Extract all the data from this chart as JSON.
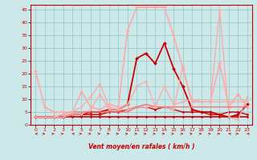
{
  "title": "",
  "xlabel": "Vent moyen/en rafales ( km/h )",
  "ylabel": "",
  "xlim": [
    -0.5,
    23.5
  ],
  "ylim": [
    0,
    47
  ],
  "yticks": [
    0,
    5,
    10,
    15,
    20,
    25,
    30,
    35,
    40,
    45
  ],
  "xticks": [
    0,
    1,
    2,
    3,
    4,
    5,
    6,
    7,
    8,
    9,
    10,
    11,
    12,
    13,
    14,
    15,
    16,
    17,
    18,
    19,
    20,
    21,
    22,
    23
  ],
  "bg_color": "#cce8e8",
  "grid_color": "#99cccc",
  "series": [
    {
      "x": [
        0,
        1,
        2,
        3,
        4,
        5,
        6,
        7,
        8,
        9,
        10,
        11,
        12,
        13,
        14,
        15,
        16,
        17,
        18,
        19,
        20,
        21,
        22,
        23
      ],
      "y": [
        3,
        3,
        3,
        3,
        3,
        3,
        3,
        3,
        3,
        3,
        3,
        3,
        3,
        3,
        3,
        3,
        3,
        3,
        3,
        3,
        3,
        3,
        3,
        3
      ],
      "color": "#cc0000",
      "lw": 1.2,
      "marker": "D",
      "ms": 1.5
    },
    {
      "x": [
        0,
        1,
        2,
        3,
        4,
        5,
        6,
        7,
        8,
        9,
        10,
        11,
        12,
        13,
        14,
        15,
        16,
        17,
        18,
        19,
        20,
        21,
        22,
        23
      ],
      "y": [
        3,
        3,
        3,
        3,
        4,
        4,
        4,
        4,
        5,
        5,
        6,
        7,
        7,
        6,
        7,
        6,
        5,
        5,
        5,
        4,
        4,
        5,
        5,
        4
      ],
      "color": "#cc0000",
      "lw": 1.0,
      "marker": "D",
      "ms": 1.5
    },
    {
      "x": [
        0,
        1,
        2,
        3,
        4,
        5,
        6,
        7,
        8,
        9,
        10,
        11,
        12,
        13,
        14,
        15,
        16,
        17,
        18,
        19,
        20,
        21,
        22,
        23
      ],
      "y": [
        3,
        3,
        3,
        3,
        4,
        4,
        5,
        5,
        6,
        6,
        8,
        26,
        28,
        24,
        32,
        22,
        15,
        6,
        5,
        5,
        4,
        3,
        4,
        8
      ],
      "color": "#cc0000",
      "lw": 1.3,
      "marker": "D",
      "ms": 2.0
    },
    {
      "x": [
        0,
        1,
        2,
        3,
        4,
        5,
        6,
        7,
        8,
        9,
        10,
        11,
        12,
        13,
        14,
        15,
        16,
        17,
        18,
        19,
        20,
        21,
        22,
        23
      ],
      "y": [
        21,
        7,
        5,
        5,
        5,
        13,
        7,
        6,
        8,
        7,
        37,
        46,
        46,
        46,
        46,
        35,
        22,
        9,
        9,
        9,
        24,
        7,
        12,
        7
      ],
      "color": "#ffaaaa",
      "lw": 1.2,
      "marker": "D",
      "ms": 2.0
    },
    {
      "x": [
        0,
        1,
        2,
        3,
        4,
        5,
        6,
        7,
        8,
        9,
        10,
        11,
        12,
        13,
        14,
        15,
        16,
        17,
        18,
        19,
        20,
        21,
        22,
        23
      ],
      "y": [
        3,
        3,
        3,
        3,
        4,
        4,
        6,
        12,
        6,
        6,
        6,
        7,
        7,
        7,
        7,
        6,
        23,
        9,
        9,
        9,
        45,
        3,
        2,
        11
      ],
      "color": "#ffaaaa",
      "lw": 1.0,
      "marker": "D",
      "ms": 1.5
    },
    {
      "x": [
        0,
        1,
        2,
        3,
        4,
        5,
        6,
        7,
        8,
        9,
        10,
        11,
        12,
        13,
        14,
        15,
        16,
        17,
        18,
        19,
        20,
        21,
        22,
        23
      ],
      "y": [
        3,
        3,
        3,
        4,
        5,
        5,
        5,
        5,
        5,
        5,
        5,
        7,
        8,
        7,
        7,
        7,
        7,
        7,
        7,
        7,
        7,
        7,
        7,
        7
      ],
      "color": "#ee7777",
      "lw": 1.0,
      "marker": null,
      "ms": 0
    },
    {
      "x": [
        0,
        1,
        2,
        3,
        4,
        5,
        6,
        7,
        8,
        9,
        10,
        11,
        12,
        13,
        14,
        15,
        16,
        17,
        18,
        19,
        20,
        21,
        22,
        23
      ],
      "y": [
        3,
        3,
        3,
        4,
        5,
        7,
        11,
        16,
        7,
        6,
        8,
        15,
        17,
        7,
        15,
        8,
        9,
        10,
        9,
        9,
        9,
        9,
        9,
        9
      ],
      "color": "#ffaaaa",
      "lw": 1.0,
      "marker": "D",
      "ms": 1.5
    }
  ],
  "arrow_directions": [
    "left",
    "right",
    "right",
    "right",
    "left",
    "right",
    "right",
    "right",
    "right",
    "right",
    "right",
    "right",
    "right",
    "right",
    "right",
    "right",
    "right",
    "right",
    "right",
    "right",
    "right",
    "left",
    "right",
    "left"
  ]
}
